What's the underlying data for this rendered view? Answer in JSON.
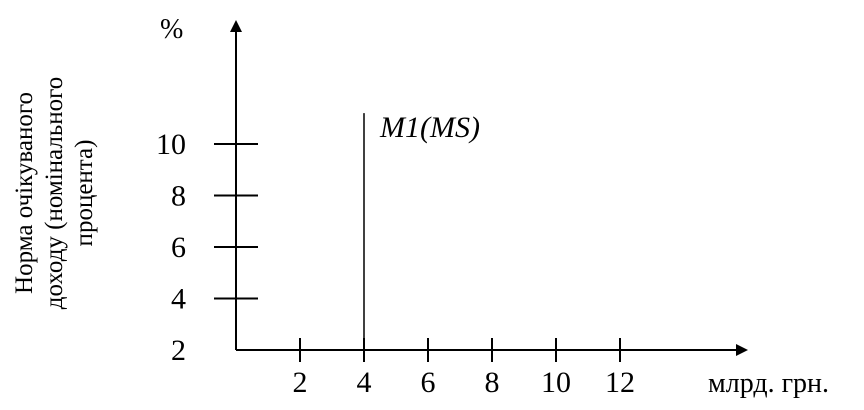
{
  "chart_data": {
    "type": "line",
    "title": "",
    "xlabel": "млрд. грн.",
    "ylabel": [
      "Норма очікуваного",
      "доходу (номінального",
      "процента)"
    ],
    "y_unit": "%",
    "x_ticks": [
      2,
      4,
      6,
      8,
      10,
      12
    ],
    "y_ticks": [
      2,
      4,
      6,
      8,
      10
    ],
    "xlim": [
      0,
      14
    ],
    "ylim": [
      2,
      12
    ],
    "grid": false,
    "series": [
      {
        "name": "M1(MS)",
        "x": [
          4,
          4
        ],
        "y": [
          2,
          11.2
        ]
      }
    ]
  }
}
